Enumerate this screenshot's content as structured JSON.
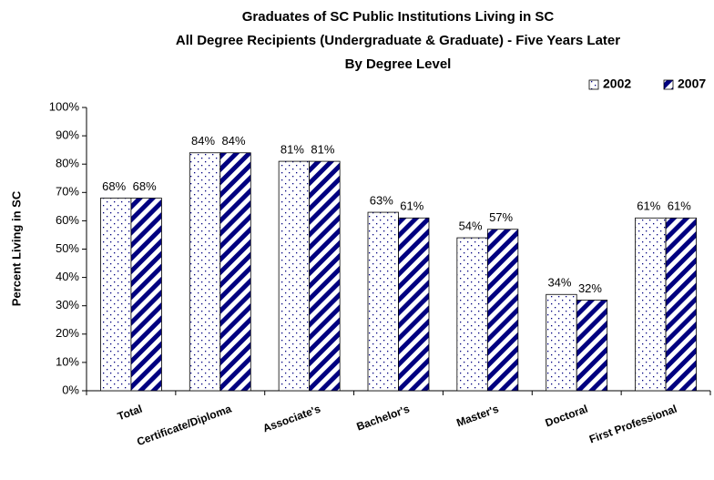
{
  "chart_data": {
    "type": "bar",
    "title": [
      "Graduates of SC Public Institutions Living in SC",
      "All Degree Recipients (Undergraduate & Graduate) - Five Years Later",
      "By Degree Level"
    ],
    "ylabel": "Percent Living in SC",
    "categories": [
      "Total",
      "Certificate/Diploma",
      "Associate's",
      "Bachelor's",
      "Master's",
      "Doctoral",
      "First Professional"
    ],
    "series": [
      {
        "name": "2002",
        "color": "#000080",
        "pattern": "dots",
        "values": [
          68,
          84,
          81,
          63,
          54,
          34,
          61
        ],
        "value_labels": [
          "68%",
          "84%",
          "81%",
          "63%",
          "54%",
          "34%",
          "61%"
        ]
      },
      {
        "name": "2007",
        "color": "#000080",
        "pattern": "diagonal-stripes",
        "values": [
          68,
          84,
          81,
          61,
          57,
          32,
          61
        ],
        "value_labels": [
          "68%",
          "84%",
          "81%",
          "61%",
          "57%",
          "32%",
          "61%"
        ]
      }
    ],
    "ylim": [
      0,
      100
    ],
    "yticks": [
      {
        "value": 0,
        "label": "0%"
      },
      {
        "value": 10,
        "label": "10%"
      },
      {
        "value": 20,
        "label": "20%"
      },
      {
        "value": 30,
        "label": "30%"
      },
      {
        "value": 40,
        "label": "40%"
      },
      {
        "value": 50,
        "label": "50%"
      },
      {
        "value": 60,
        "label": "60%"
      },
      {
        "value": 70,
        "label": "70%"
      },
      {
        "value": 80,
        "label": "80%"
      },
      {
        "value": 90,
        "label": "90%"
      },
      {
        "value": 100,
        "label": "100%"
      }
    ],
    "legend": "top-right",
    "grid": false
  }
}
